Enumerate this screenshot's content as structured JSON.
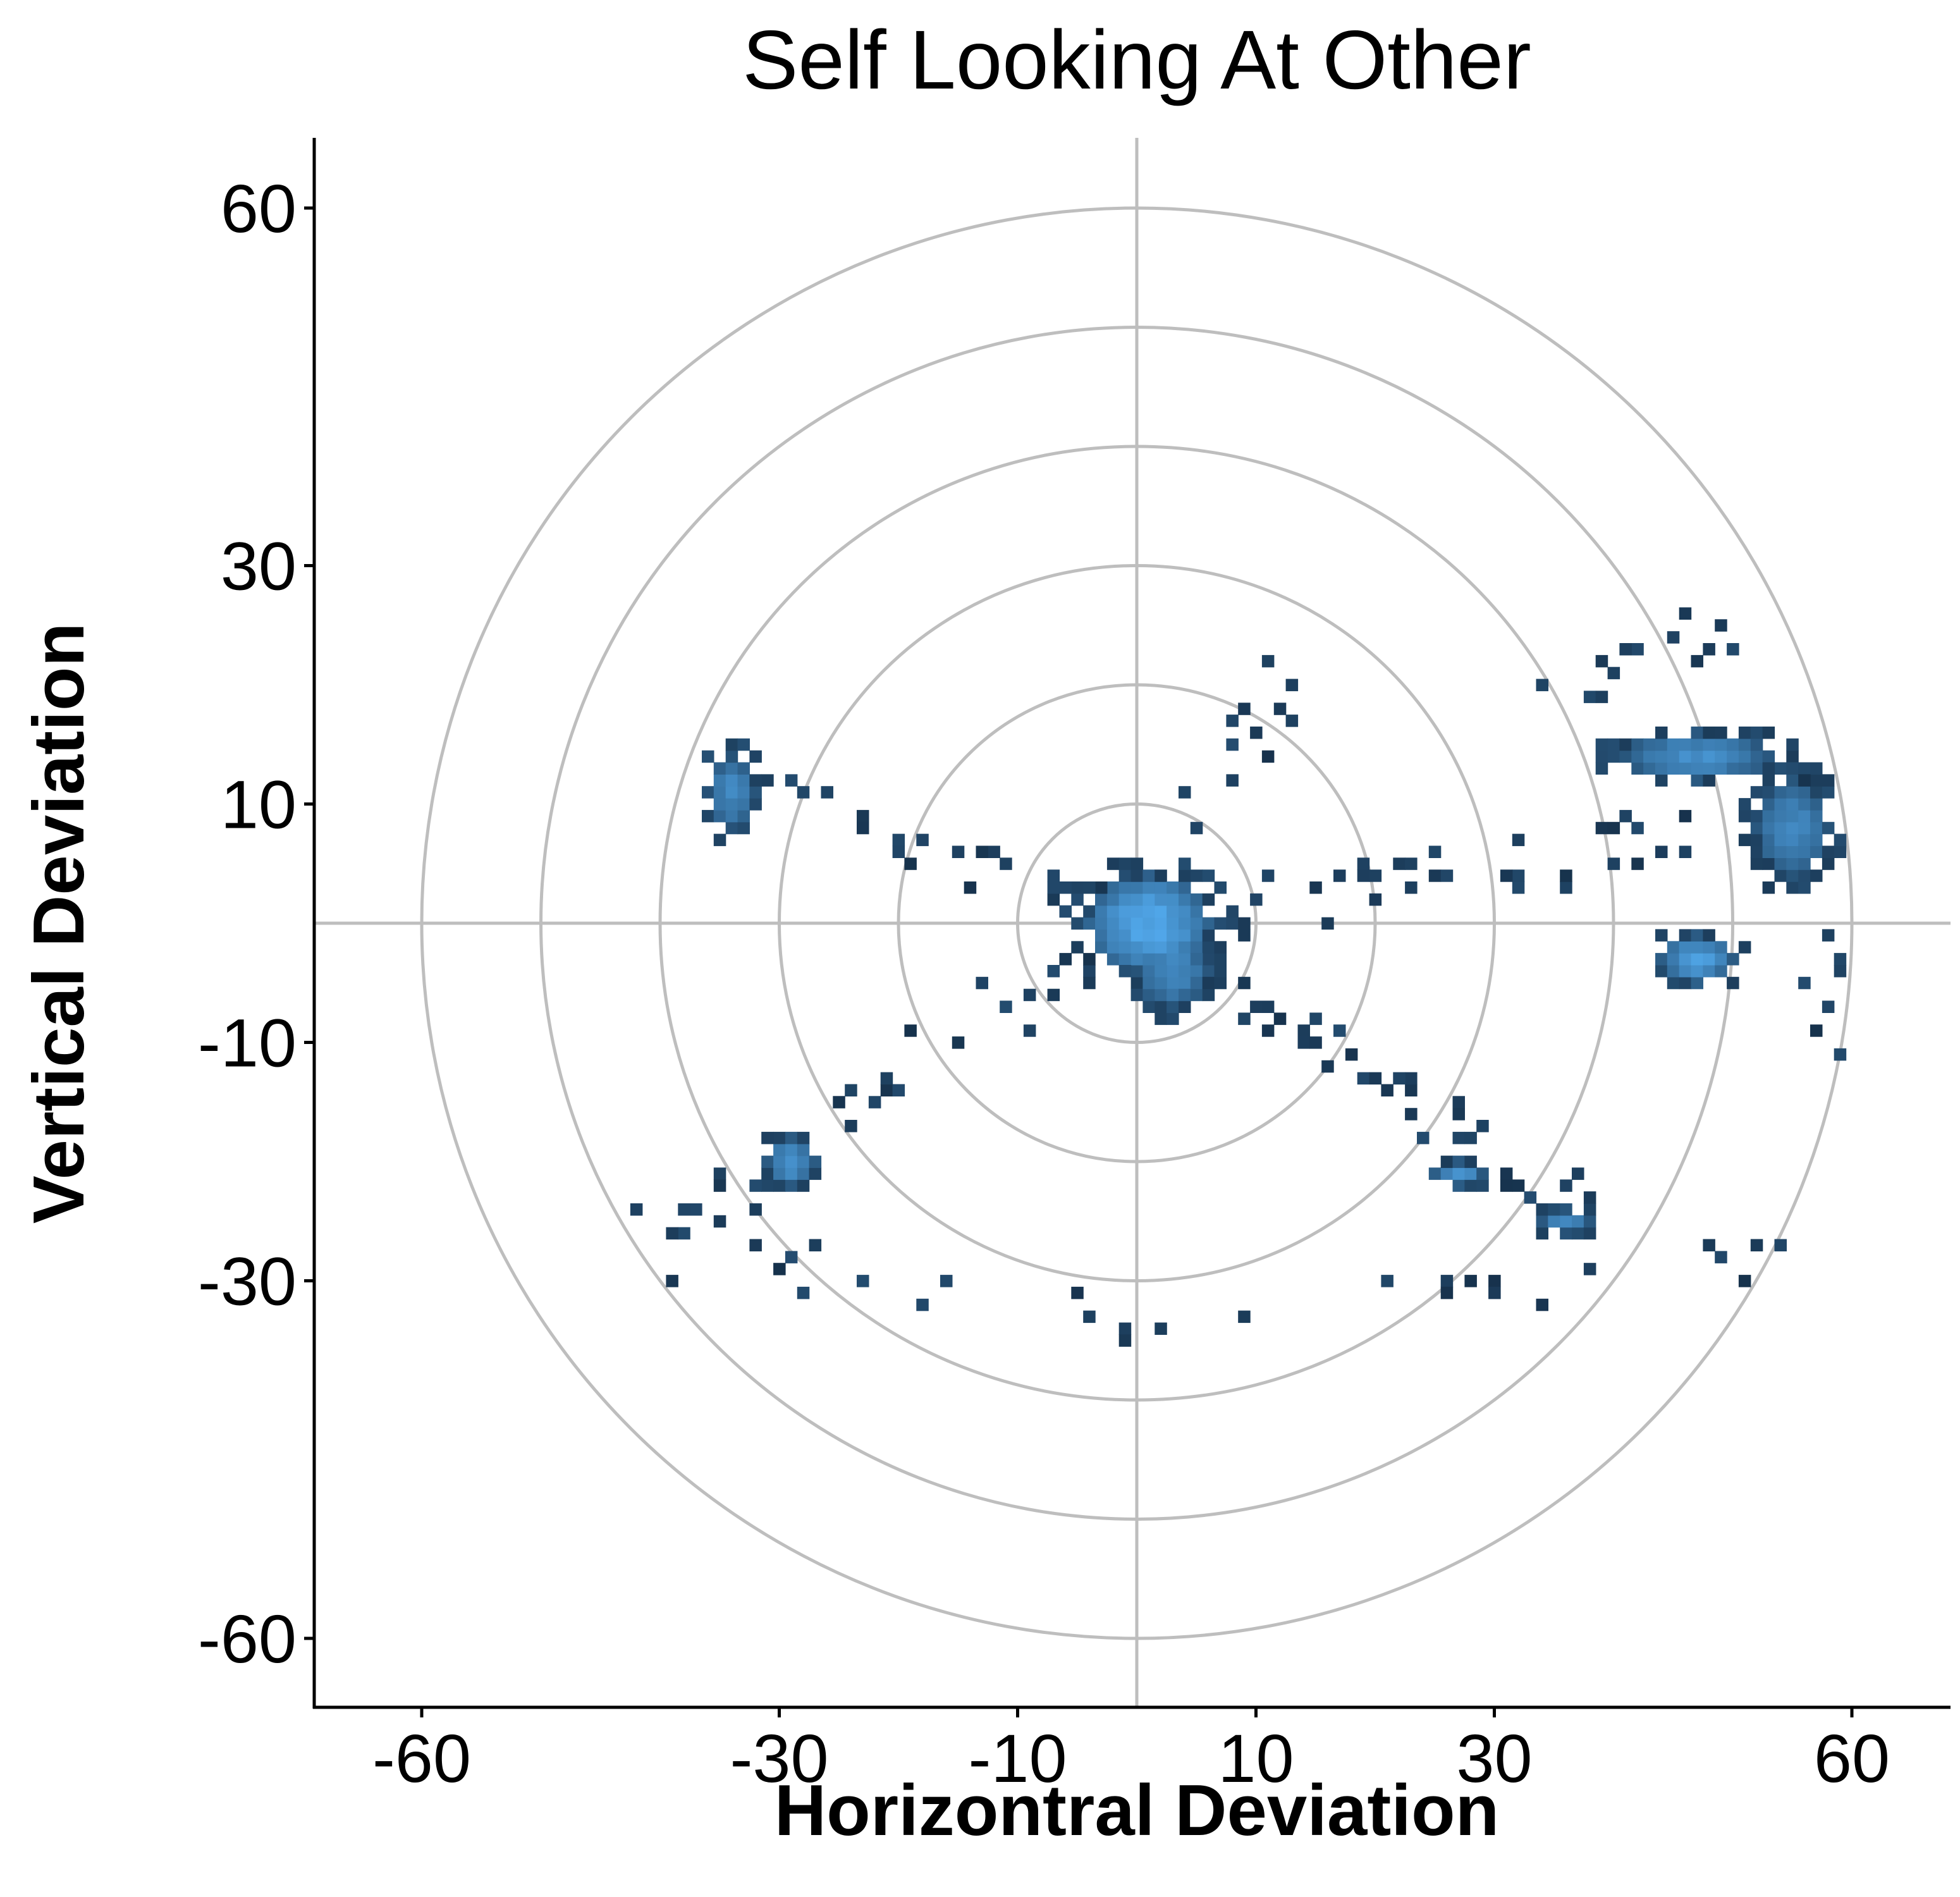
{
  "chart_data": {
    "type": "heatmap",
    "title": "Self Looking At Other",
    "xlabel": "Horizontral Deviation",
    "ylabel": "Vertical Deviation",
    "xlim": [
      -60,
      60
    ],
    "ylim": [
      -60,
      60
    ],
    "x_ticks": [
      -60,
      -30,
      -10,
      10,
      30,
      60
    ],
    "y_ticks": [
      60,
      30,
      10,
      -10,
      -30,
      -60
    ],
    "grid": {
      "concentric_circle_radii": [
        10,
        20,
        30,
        40,
        50,
        60
      ],
      "crosshair_at": [
        0,
        0
      ]
    },
    "colors": {
      "low_density": "#132b43",
      "high_density": "#56b1f7",
      "grid": "#bebebe",
      "axis": "#000000"
    },
    "bin_size": 1,
    "dense_clusters": [
      {
        "x": 1,
        "y": 0,
        "radius_x": 5,
        "radius_y": 4,
        "peak": 1.0
      },
      {
        "x": 3,
        "y": -4,
        "radius_x": 3,
        "radius_y": 3,
        "peak": 0.75
      },
      {
        "x": -34,
        "y": 11,
        "radius_x": 2,
        "radius_y": 3,
        "peak": 0.75
      },
      {
        "x": -29,
        "y": -20,
        "radius_x": 2,
        "radius_y": 2,
        "peak": 0.85
      },
      {
        "x": 47,
        "y": 14,
        "radius_x": 6,
        "radius_y": 2,
        "peak": 0.8
      },
      {
        "x": 55,
        "y": 8,
        "radius_x": 3,
        "radius_y": 4,
        "peak": 0.75
      },
      {
        "x": 47,
        "y": -3,
        "radius_x": 3,
        "radius_y": 2,
        "peak": 0.9
      },
      {
        "x": 27,
        "y": -21,
        "radius_x": 2,
        "radius_y": 1,
        "peak": 0.85
      },
      {
        "x": 36,
        "y": -25,
        "radius_x": 2,
        "radius_y": 1,
        "peak": 0.75
      }
    ],
    "trails": [
      {
        "from": [
          0,
          0
        ],
        "to": [
          -36,
          13
        ],
        "density": 0.5
      },
      {
        "from": [
          0,
          0
        ],
        "to": [
          -41,
          -27
        ],
        "density": 0.55
      },
      {
        "from": [
          0,
          0
        ],
        "to": [
          38,
          -25
        ],
        "density": 0.6
      },
      {
        "from": [
          0,
          0
        ],
        "to": [
          58,
          9
        ],
        "density": 0.45
      },
      {
        "from": [
          0,
          0
        ],
        "to": [
          15,
          25
        ],
        "density": 0.35
      },
      {
        "from": [
          55,
          12
        ],
        "to": [
          59,
          -12
        ],
        "density": 0.5
      },
      {
        "from": [
          35,
          18
        ],
        "to": [
          49,
          24
        ],
        "density": 0.4
      },
      {
        "from": [
          -41,
          -27
        ],
        "to": [
          17,
          -36
        ],
        "density": 0.15
      },
      {
        "from": [
          20,
          -31
        ],
        "to": [
          55,
          -28
        ],
        "density": 0.2
      }
    ]
  }
}
